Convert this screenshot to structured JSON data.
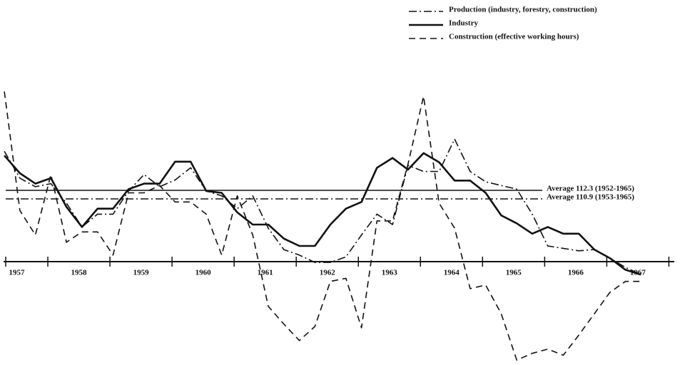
{
  "chart_data": {
    "type": "line",
    "x": [
      1957.3,
      1957.55,
      1957.8,
      1958.05,
      1958.3,
      1958.55,
      1958.8,
      1959.05,
      1959.3,
      1959.55,
      1959.8,
      1960.05,
      1960.3,
      1960.55,
      1960.8,
      1961.05,
      1961.3,
      1961.55,
      1961.8,
      1962.05,
      1962.3,
      1962.55,
      1962.8,
      1963.05,
      1963.3,
      1963.55,
      1963.8,
      1964.05,
      1964.3,
      1964.55,
      1964.8,
      1965.05,
      1965.3,
      1965.55,
      1965.8,
      1966.05,
      1966.3,
      1966.55,
      1966.8,
      1967.05,
      1967.3,
      1967.55
    ],
    "series": [
      {
        "name": "Production (industry, forestry, construction)",
        "color": "#111",
        "dash": "dashdot",
        "values": [
          118.7,
          114.3,
          112.9,
          113.4,
          110.2,
          106.3,
          108.4,
          108.4,
          112.2,
          114.9,
          112.9,
          114.0,
          116.0,
          112.2,
          111.4,
          109.3,
          111.4,
          106.1,
          102.6,
          101.7,
          100.5,
          100.5,
          101.4,
          105.0,
          108.4,
          106.7,
          116.4,
          115.4,
          115.4,
          120.7,
          115.4,
          113.7,
          113.1,
          112.5,
          108.4,
          103.2,
          102.8,
          102.4,
          102.6,
          101.2,
          99.7,
          98.5
        ]
      },
      {
        "name": "Industry",
        "color": "#111",
        "dash": "solid",
        "values": [
          118.0,
          115.1,
          113.4,
          114.3,
          109.6,
          106.3,
          109.3,
          109.3,
          112.5,
          113.4,
          113.4,
          117.0,
          117.0,
          112.2,
          111.9,
          108.7,
          106.7,
          106.7,
          104.4,
          103.2,
          103.2,
          106.7,
          109.3,
          110.4,
          116.0,
          117.6,
          115.7,
          118.4,
          116.9,
          113.9,
          113.9,
          111.9,
          108.2,
          106.9,
          105.2,
          106.3,
          105.2,
          105.2,
          102.6,
          101.2,
          99.3,
          98.5
        ]
      },
      {
        "name": "Construction (effective working hours)",
        "color": "#111",
        "dash": "dashed",
        "values": [
          128.5,
          109.0,
          105.0,
          114.9,
          103.8,
          105.5,
          105.5,
          101.7,
          111.9,
          111.9,
          113.1,
          110.4,
          110.4,
          108.4,
          101.7,
          111.4,
          105.0,
          93.3,
          90.4,
          87.7,
          90.0,
          97.4,
          97.9,
          89.8,
          107.3,
          107.3,
          116.6,
          127.7,
          110.2,
          106.1,
          96.2,
          96.8,
          92.1,
          84.5,
          85.6,
          86.3,
          85.3,
          88.6,
          92.1,
          95.6,
          97.4,
          97.4
        ]
      }
    ],
    "averages": [
      {
        "value": 112.3,
        "label": "Average 112.3 (1952-1965)",
        "dash": "solid"
      },
      {
        "value": 110.9,
        "label": "Average 110.9 (1953-1965)",
        "dash": "dashdot"
      }
    ],
    "xlim": [
      1957.23,
      1968.34
    ],
    "ylim": [
      83.7,
      131.8
    ],
    "xticks": [
      1958,
      1959,
      1960,
      1961,
      1962,
      1963,
      1964,
      1965,
      1966,
      1967,
      1968
    ],
    "year_labels": [
      {
        "value": 1957.5,
        "label": "1957"
      },
      {
        "value": 1958.5,
        "label": "1958"
      },
      {
        "value": 1959.5,
        "label": "1959"
      },
      {
        "value": 1960.5,
        "label": "1960"
      },
      {
        "value": 1961.5,
        "label": "1961"
      },
      {
        "value": 1962.5,
        "label": "1962"
      },
      {
        "value": 1963.5,
        "label": "1963"
      },
      {
        "value": 1964.5,
        "label": "1964"
      },
      {
        "value": 1965.5,
        "label": "1965"
      },
      {
        "value": 1966.5,
        "label": "1966"
      },
      {
        "value": 1967.5,
        "label": "1967"
      }
    ],
    "legend": "top-right"
  }
}
